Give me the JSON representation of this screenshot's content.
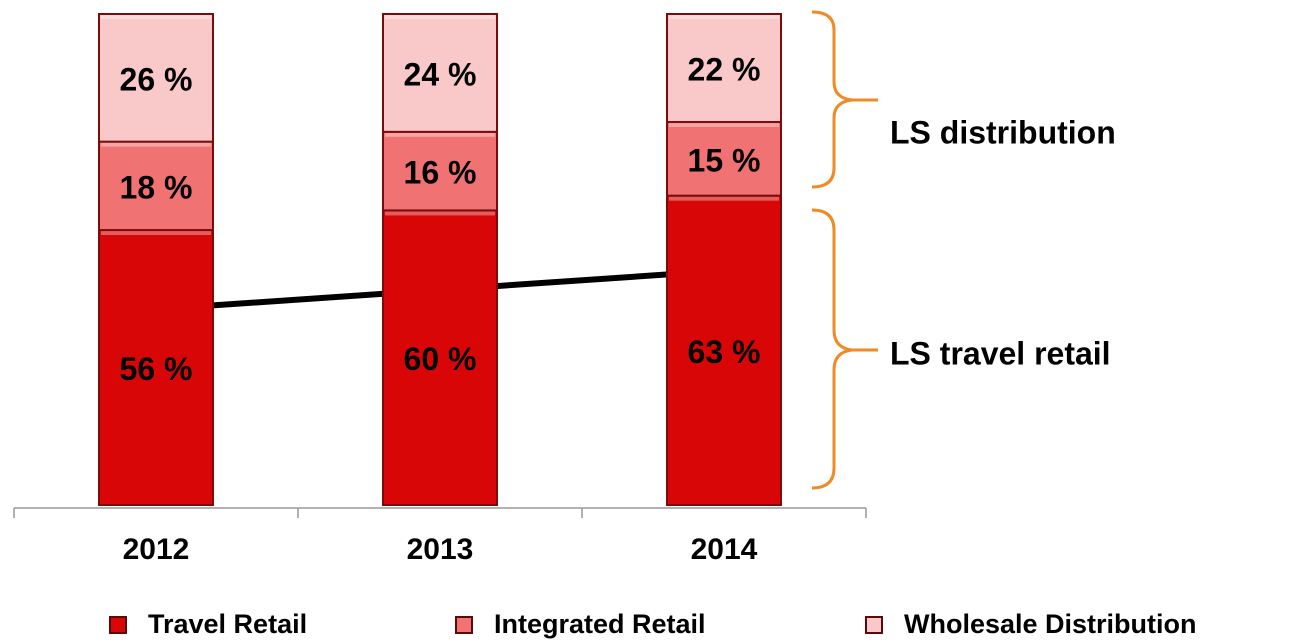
{
  "chart_data": {
    "type": "stacked_bar",
    "categories": [
      "2012",
      "2013",
      "2014"
    ],
    "series": [
      {
        "name": "Travel Retail",
        "color": "#d80606",
        "values": [
          56,
          60,
          63
        ],
        "value_labels": [
          "56 %",
          "60 %",
          "63 %"
        ]
      },
      {
        "name": "Integrated Retail",
        "color": "#f07272",
        "values": [
          18,
          16,
          15
        ],
        "value_labels": [
          "18 %",
          "16 %",
          "15 %"
        ]
      },
      {
        "name": "Wholesale Distribution",
        "color": "#f9c9c9",
        "values": [
          26,
          24,
          22
        ],
        "value_labels": [
          "26 %",
          "24 %",
          "22 %"
        ]
      }
    ],
    "ylim": [
      0,
      100
    ],
    "annotations": [
      "LS distribution",
      "LS travel retail"
    ],
    "legend": "bottom"
  }
}
